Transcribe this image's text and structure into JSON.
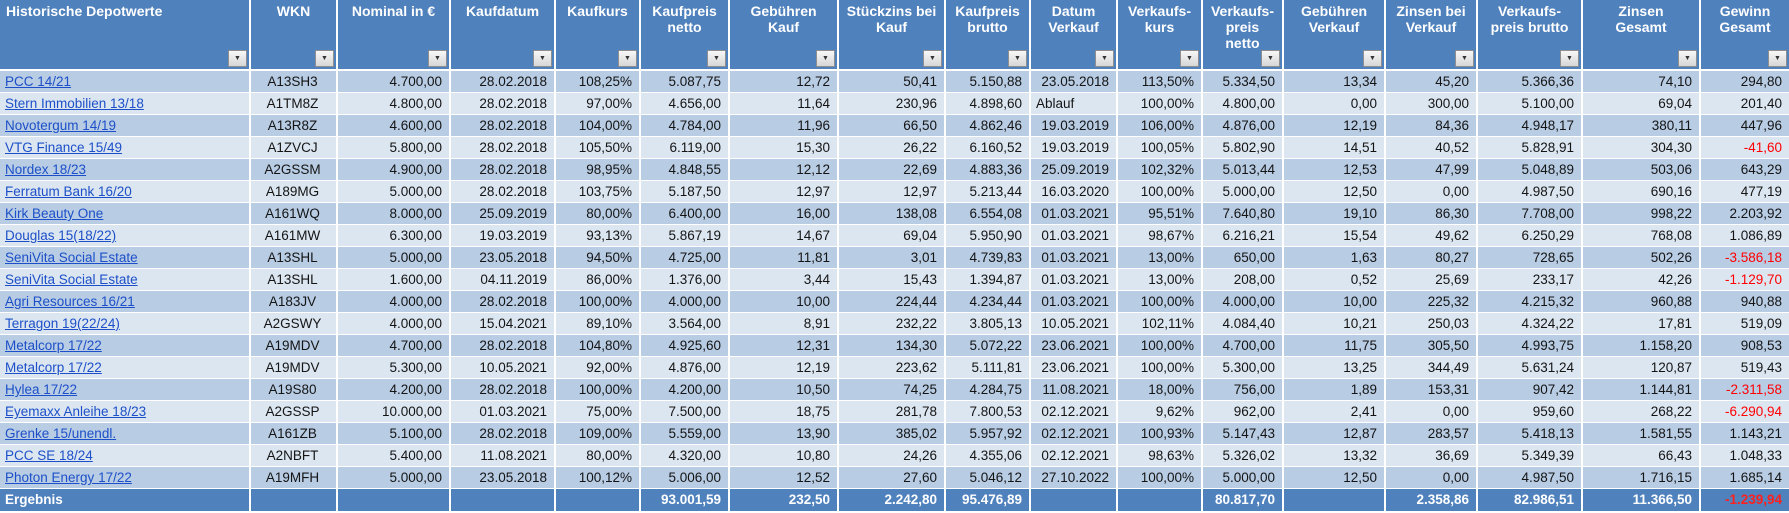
{
  "table": {
    "filter_icon": "▼",
    "colors": {
      "header_bg": "#4f81bd",
      "total_bg": "#4f81bd",
      "band_dark": "#b8cce4",
      "band_light": "#dce6f1",
      "link_blue": "#1d50c8",
      "negative_red": "#ff0000",
      "header_text": "#ffffff"
    },
    "columns": [
      {
        "key": "depotwert",
        "label": "Historische Depotwerte",
        "align": "left"
      },
      {
        "key": "wkn",
        "label": "WKN",
        "align": "center"
      },
      {
        "key": "nominal",
        "label": "Nominal in €",
        "align": "right"
      },
      {
        "key": "kaufdatum",
        "label": "Kaufdatum",
        "align": "right"
      },
      {
        "key": "kaufkurs",
        "label": "Kaufkurs",
        "align": "right"
      },
      {
        "key": "kaufpreis-netto",
        "label": "Kaufpreis\nnetto",
        "align": "right"
      },
      {
        "key": "gebuehren-kauf",
        "label": "Gebühren\nKauf",
        "align": "right"
      },
      {
        "key": "stueckzins-kauf",
        "label": "Stückzins bei\nKauf",
        "align": "right"
      },
      {
        "key": "kaufpreis-brutto",
        "label": "Kaufpreis\nbrutto",
        "align": "right"
      },
      {
        "key": "datum-verkauf",
        "label": "Datum\nVerkauf",
        "align": "right"
      },
      {
        "key": "verkaufskurs",
        "label": "Verkaufs-\nkurs",
        "align": "right"
      },
      {
        "key": "verkaufspreis-netto",
        "label": "Verkaufs-\npreis\nnetto",
        "align": "right"
      },
      {
        "key": "gebuehren-verkauf",
        "label": "Gebühren\nVerkauf",
        "align": "right"
      },
      {
        "key": "zinsen-verkauf",
        "label": "Zinsen bei\nVerkauf",
        "align": "right"
      },
      {
        "key": "verkaufspreis-brutto",
        "label": "Verkaufs-\npreis brutto",
        "align": "right"
      },
      {
        "key": "zinsen-gesamt",
        "label": "Zinsen\nGesamt",
        "align": "right"
      },
      {
        "key": "gewinn-gesamt",
        "label": "Gewinn\nGesamt",
        "align": "right"
      }
    ],
    "rows": [
      [
        "PCC 14/21",
        "A13SH3",
        "4.700,00",
        "28.02.2018",
        "108,25%",
        "5.087,75",
        "12,72",
        "50,41",
        "5.150,88",
        "23.05.2018",
        "113,50%",
        "5.334,50",
        "13,34",
        "45,20",
        "5.366,36",
        "74,10",
        "294,80"
      ],
      [
        "Stern Immobilien 13/18",
        "A1TM8Z",
        "4.800,00",
        "28.02.2018",
        "97,00%",
        "4.656,00",
        "11,64",
        "230,96",
        "4.898,60",
        "Ablauf",
        "100,00%",
        "4.800,00",
        "0,00",
        "300,00",
        "5.100,00",
        "69,04",
        "201,40"
      ],
      [
        "Novotergum 14/19",
        "A13R8Z",
        "4.600,00",
        "28.02.2018",
        "104,00%",
        "4.784,00",
        "11,96",
        "66,50",
        "4.862,46",
        "19.03.2019",
        "106,00%",
        "4.876,00",
        "12,19",
        "84,36",
        "4.948,17",
        "380,11",
        "447,96"
      ],
      [
        "VTG Finance 15/49",
        "A1ZVCJ",
        "5.800,00",
        "28.02.2018",
        "105,50%",
        "6.119,00",
        "15,30",
        "26,22",
        "6.160,52",
        "19.03.2019",
        "100,05%",
        "5.802,90",
        "14,51",
        "40,52",
        "5.828,91",
        "304,30",
        "-41,60"
      ],
      [
        "Nordex 18/23",
        "A2GSSM",
        "4.900,00",
        "28.02.2018",
        "98,95%",
        "4.848,55",
        "12,12",
        "22,69",
        "4.883,36",
        "25.09.2019",
        "102,32%",
        "5.013,44",
        "12,53",
        "47,99",
        "5.048,89",
        "503,06",
        "643,29"
      ],
      [
        "Ferratum Bank 16/20",
        "A189MG",
        "5.000,00",
        "28.02.2018",
        "103,75%",
        "5.187,50",
        "12,97",
        "12,97",
        "5.213,44",
        "16.03.2020",
        "100,00%",
        "5.000,00",
        "12,50",
        "0,00",
        "4.987,50",
        "690,16",
        "477,19"
      ],
      [
        "Kirk Beauty One",
        "A161WQ",
        "8.000,00",
        "25.09.2019",
        "80,00%",
        "6.400,00",
        "16,00",
        "138,08",
        "6.554,08",
        "01.03.2021",
        "95,51%",
        "7.640,80",
        "19,10",
        "86,30",
        "7.708,00",
        "998,22",
        "2.203,92"
      ],
      [
        "Douglas 15(18/22)",
        "A161MW",
        "6.300,00",
        "19.03.2019",
        "93,13%",
        "5.867,19",
        "14,67",
        "69,04",
        "5.950,90",
        "01.03.2021",
        "98,67%",
        "6.216,21",
        "15,54",
        "49,62",
        "6.250,29",
        "768,08",
        "1.086,89"
      ],
      [
        "SeniVita Social Estate",
        "A13SHL",
        "5.000,00",
        "23.05.2018",
        "94,50%",
        "4.725,00",
        "11,81",
        "3,01",
        "4.739,83",
        "01.03.2021",
        "13,00%",
        "650,00",
        "1,63",
        "80,27",
        "728,65",
        "502,26",
        "-3.586,18"
      ],
      [
        "SeniVita Social Estate",
        "A13SHL",
        "1.600,00",
        "04.11.2019",
        "86,00%",
        "1.376,00",
        "3,44",
        "15,43",
        "1.394,87",
        "01.03.2021",
        "13,00%",
        "208,00",
        "0,52",
        "25,69",
        "233,17",
        "42,26",
        "-1.129,70"
      ],
      [
        "Agri Resources 16/21",
        "A183JV",
        "4.000,00",
        "28.02.2018",
        "100,00%",
        "4.000,00",
        "10,00",
        "224,44",
        "4.234,44",
        "01.03.2021",
        "100,00%",
        "4.000,00",
        "10,00",
        "225,32",
        "4.215,32",
        "960,88",
        "940,88"
      ],
      [
        "Terragon 19(22/24)",
        "A2GSWY",
        "4.000,00",
        "15.04.2021",
        "89,10%",
        "3.564,00",
        "8,91",
        "232,22",
        "3.805,13",
        "10.05.2021",
        "102,11%",
        "4.084,40",
        "10,21",
        "250,03",
        "4.324,22",
        "17,81",
        "519,09"
      ],
      [
        "Metalcorp 17/22",
        "A19MDV",
        "4.700,00",
        "28.02.2018",
        "104,80%",
        "4.925,60",
        "12,31",
        "134,30",
        "5.072,22",
        "23.06.2021",
        "100,00%",
        "4.700,00",
        "11,75",
        "305,50",
        "4.993,75",
        "1.158,20",
        "908,53"
      ],
      [
        "Metalcorp 17/22",
        "A19MDV",
        "5.300,00",
        "10.05.2021",
        "92,00%",
        "4.876,00",
        "12,19",
        "223,62",
        "5.111,81",
        "23.06.2021",
        "100,00%",
        "5.300,00",
        "13,25",
        "344,49",
        "5.631,24",
        "120,87",
        "519,43"
      ],
      [
        "Hylea 17/22",
        "A19S80",
        "4.200,00",
        "28.02.2018",
        "100,00%",
        "4.200,00",
        "10,50",
        "74,25",
        "4.284,75",
        "11.08.2021",
        "18,00%",
        "756,00",
        "1,89",
        "153,31",
        "907,42",
        "1.144,81",
        "-2.311,58"
      ],
      [
        "Eyemaxx Anleihe 18/23",
        "A2GSSP",
        "10.000,00",
        "01.03.2021",
        "75,00%",
        "7.500,00",
        "18,75",
        "281,78",
        "7.800,53",
        "02.12.2021",
        "9,62%",
        "962,00",
        "2,41",
        "0,00",
        "959,60",
        "268,22",
        "-6.290,94"
      ],
      [
        "Grenke 15/unendl.",
        "A161ZB",
        "5.100,00",
        "28.02.2018",
        "109,00%",
        "5.559,00",
        "13,90",
        "385,02",
        "5.957,92",
        "02.12.2021",
        "100,93%",
        "5.147,43",
        "12,87",
        "283,57",
        "5.418,13",
        "1.581,55",
        "1.143,21"
      ],
      [
        "PCC SE 18/24",
        "A2NBFT",
        "5.400,00",
        "11.08.2021",
        "80,00%",
        "4.320,00",
        "10,80",
        "24,26",
        "4.355,06",
        "02.12.2021",
        "98,63%",
        "5.326,02",
        "13,32",
        "36,69",
        "5.349,39",
        "66,43",
        "1.048,33"
      ],
      [
        "Photon Energy 17/22",
        "A19MFH",
        "5.000,00",
        "23.05.2018",
        "100,12%",
        "5.006,00",
        "12,52",
        "27,60",
        "5.046,12",
        "27.10.2022",
        "100,00%",
        "5.000,00",
        "12,50",
        "0,00",
        "4.987,50",
        "1.716,15",
        "1.685,14"
      ]
    ],
    "total_row": {
      "values": [
        "Ergebnis",
        "",
        "",
        "",
        "",
        "93.001,59",
        "232,50",
        "2.242,80",
        "95.476,89",
        "",
        "",
        "80.817,70",
        "",
        "2.358,86",
        "82.986,51",
        "11.366,50",
        "-1.239,94"
      ]
    }
  }
}
